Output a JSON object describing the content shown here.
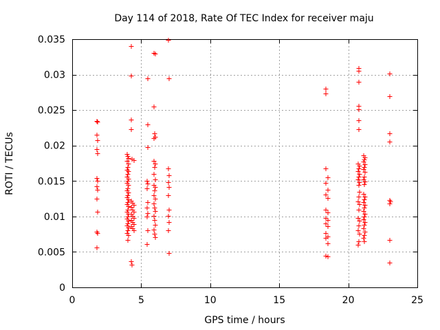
{
  "chart_data": {
    "type": "scatter",
    "title": "Day 114 of 2018, Rate Of TEC Index for receiver maju",
    "xlabel": "GPS time / hours",
    "ylabel": "ROTI / TECUs",
    "xlim": [
      0,
      25
    ],
    "ylim": [
      0,
      0.035
    ],
    "grid": true,
    "marker": "+",
    "marker_color": "#ff0000",
    "xticks": [
      0,
      5,
      10,
      15,
      20,
      25
    ],
    "xtick_labels": [
      "0",
      "5",
      "10",
      "15",
      "20",
      "25"
    ],
    "yticks": [
      0,
      0.005,
      0.01,
      0.015,
      0.02,
      0.025,
      0.03,
      0.035
    ],
    "ytick_labels": [
      "0",
      "0.005",
      "0.01",
      "0.015",
      "0.02",
      "0.025",
      "0.03",
      "0.035"
    ],
    "series": [
      {
        "name": "ROTI",
        "points": [
          [
            1.75,
            0.0235
          ],
          [
            1.8,
            0.0234
          ],
          [
            1.75,
            0.0215
          ],
          [
            1.8,
            0.0207
          ],
          [
            1.75,
            0.0195
          ],
          [
            1.8,
            0.0189
          ],
          [
            1.75,
            0.0154
          ],
          [
            1.8,
            0.015
          ],
          [
            1.75,
            0.0143
          ],
          [
            1.8,
            0.0138
          ],
          [
            1.75,
            0.0125
          ],
          [
            1.8,
            0.0107
          ],
          [
            1.75,
            0.0079
          ],
          [
            1.8,
            0.0077
          ],
          [
            1.75,
            0.0056
          ],
          [
            3.95,
            0.0188
          ],
          [
            4.0,
            0.0185
          ],
          [
            4.05,
            0.0182
          ],
          [
            3.95,
            0.0178
          ],
          [
            4.05,
            0.0175
          ],
          [
            4.0,
            0.017
          ],
          [
            3.95,
            0.0166
          ],
          [
            4.05,
            0.0164
          ],
          [
            4.0,
            0.016
          ],
          [
            3.95,
            0.0156
          ],
          [
            4.05,
            0.0153
          ],
          [
            4.0,
            0.015
          ],
          [
            3.95,
            0.0147
          ],
          [
            4.05,
            0.0144
          ],
          [
            4.0,
            0.014
          ],
          [
            3.95,
            0.0137
          ],
          [
            4.05,
            0.0134
          ],
          [
            4.0,
            0.013
          ],
          [
            3.95,
            0.0127
          ],
          [
            4.05,
            0.0124
          ],
          [
            4.0,
            0.012
          ],
          [
            3.95,
            0.0117
          ],
          [
            4.05,
            0.0114
          ],
          [
            4.0,
            0.011
          ],
          [
            3.95,
            0.0107
          ],
          [
            4.05,
            0.0104
          ],
          [
            4.0,
            0.01
          ],
          [
            3.95,
            0.0097
          ],
          [
            4.05,
            0.0094
          ],
          [
            4.0,
            0.009
          ],
          [
            3.95,
            0.0087
          ],
          [
            4.05,
            0.0084
          ],
          [
            4.0,
            0.008
          ],
          [
            3.95,
            0.0077
          ],
          [
            4.05,
            0.0074
          ],
          [
            3.98,
            0.0067
          ],
          [
            4.25,
            0.034
          ],
          [
            4.25,
            0.0299
          ],
          [
            4.25,
            0.0237
          ],
          [
            4.25,
            0.0223
          ],
          [
            4.3,
            0.0181
          ],
          [
            4.45,
            0.0179
          ],
          [
            4.25,
            0.0122
          ],
          [
            4.35,
            0.0119
          ],
          [
            4.45,
            0.0116
          ],
          [
            4.25,
            0.0113
          ],
          [
            4.35,
            0.011
          ],
          [
            4.45,
            0.0107
          ],
          [
            4.25,
            0.0104
          ],
          [
            4.35,
            0.0101
          ],
          [
            4.45,
            0.0098
          ],
          [
            4.25,
            0.0095
          ],
          [
            4.35,
            0.0092
          ],
          [
            4.45,
            0.0089
          ],
          [
            4.25,
            0.0086
          ],
          [
            4.35,
            0.0083
          ],
          [
            4.45,
            0.008
          ],
          [
            4.25,
            0.0037
          ],
          [
            4.3,
            0.0032
          ],
          [
            5.45,
            0.0295
          ],
          [
            5.45,
            0.023
          ],
          [
            5.45,
            0.0198
          ],
          [
            5.4,
            0.015
          ],
          [
            5.45,
            0.0146
          ],
          [
            5.4,
            0.014
          ],
          [
            5.45,
            0.012
          ],
          [
            5.4,
            0.0112
          ],
          [
            5.45,
            0.0105
          ],
          [
            5.4,
            0.01
          ],
          [
            5.45,
            0.008
          ],
          [
            5.4,
            0.0061
          ],
          [
            5.9,
            0.0331
          ],
          [
            6.0,
            0.033
          ],
          [
            5.9,
            0.0255
          ],
          [
            5.95,
            0.0217
          ],
          [
            6.0,
            0.0212
          ],
          [
            5.9,
            0.021
          ],
          [
            5.9,
            0.0178
          ],
          [
            6.0,
            0.0175
          ],
          [
            5.95,
            0.017
          ],
          [
            5.9,
            0.016
          ],
          [
            6.0,
            0.0152
          ],
          [
            5.9,
            0.0144
          ],
          [
            6.0,
            0.0142
          ],
          [
            5.95,
            0.0137
          ],
          [
            5.9,
            0.013
          ],
          [
            6.0,
            0.0125
          ],
          [
            5.9,
            0.0118
          ],
          [
            5.95,
            0.0112
          ],
          [
            6.0,
            0.0108
          ],
          [
            5.9,
            0.0101
          ],
          [
            5.95,
            0.0095
          ],
          [
            6.0,
            0.0088
          ],
          [
            5.9,
            0.0081
          ],
          [
            5.95,
            0.0076
          ],
          [
            6.0,
            0.0071
          ],
          [
            6.9,
            0.0349
          ],
          [
            6.95,
            0.0295
          ],
          [
            6.9,
            0.0168
          ],
          [
            6.95,
            0.0158
          ],
          [
            6.9,
            0.0148
          ],
          [
            6.95,
            0.0142
          ],
          [
            6.9,
            0.013
          ],
          [
            6.95,
            0.011
          ],
          [
            6.9,
            0.0101
          ],
          [
            6.95,
            0.0092
          ],
          [
            6.9,
            0.008
          ],
          [
            6.95,
            0.0048
          ],
          [
            18.35,
            0.028
          ],
          [
            18.35,
            0.0273
          ],
          [
            18.35,
            0.0168
          ],
          [
            18.5,
            0.0155
          ],
          [
            18.35,
            0.0147
          ],
          [
            18.5,
            0.0138
          ],
          [
            18.35,
            0.0131
          ],
          [
            18.5,
            0.0126
          ],
          [
            18.35,
            0.011
          ],
          [
            18.5,
            0.0106
          ],
          [
            18.35,
            0.0098
          ],
          [
            18.5,
            0.0095
          ],
          [
            18.35,
            0.009
          ],
          [
            18.5,
            0.0086
          ],
          [
            18.35,
            0.0077
          ],
          [
            18.5,
            0.0072
          ],
          [
            18.35,
            0.007
          ],
          [
            18.5,
            0.0062
          ],
          [
            18.35,
            0.0045
          ],
          [
            18.5,
            0.0044
          ],
          [
            20.7,
            0.0309
          ],
          [
            20.7,
            0.0305
          ],
          [
            20.7,
            0.029
          ],
          [
            20.7,
            0.0256
          ],
          [
            20.7,
            0.0251
          ],
          [
            20.7,
            0.0236
          ],
          [
            20.7,
            0.0223
          ],
          [
            20.65,
            0.0175
          ],
          [
            20.75,
            0.0172
          ],
          [
            20.7,
            0.0168
          ],
          [
            20.65,
            0.0164
          ],
          [
            20.75,
            0.016
          ],
          [
            20.7,
            0.0156
          ],
          [
            20.65,
            0.0152
          ],
          [
            20.75,
            0.0148
          ],
          [
            20.7,
            0.0144
          ],
          [
            20.75,
            0.0135
          ],
          [
            20.7,
            0.0128
          ],
          [
            20.65,
            0.0121
          ],
          [
            20.75,
            0.0117
          ],
          [
            20.7,
            0.011
          ],
          [
            20.65,
            0.0098
          ],
          [
            20.75,
            0.0094
          ],
          [
            20.7,
            0.0087
          ],
          [
            20.65,
            0.008
          ],
          [
            20.75,
            0.0076
          ],
          [
            20.7,
            0.0065
          ],
          [
            20.65,
            0.006
          ],
          [
            21.05,
            0.0186
          ],
          [
            21.15,
            0.0183
          ],
          [
            21.1,
            0.018
          ],
          [
            21.05,
            0.0177
          ],
          [
            21.15,
            0.0174
          ],
          [
            21.1,
            0.017
          ],
          [
            21.05,
            0.0167
          ],
          [
            21.15,
            0.0163
          ],
          [
            21.1,
            0.0156
          ],
          [
            21.05,
            0.0152
          ],
          [
            21.15,
            0.0149
          ],
          [
            21.1,
            0.0145
          ],
          [
            21.05,
            0.0132
          ],
          [
            21.15,
            0.0128
          ],
          [
            21.1,
            0.0124
          ],
          [
            21.05,
            0.012
          ],
          [
            21.15,
            0.0116
          ],
          [
            21.1,
            0.0112
          ],
          [
            21.05,
            0.0108
          ],
          [
            21.15,
            0.0104
          ],
          [
            21.1,
            0.01
          ],
          [
            21.05,
            0.0096
          ],
          [
            21.15,
            0.0092
          ],
          [
            21.1,
            0.0088
          ],
          [
            21.05,
            0.0083
          ],
          [
            21.15,
            0.0079
          ],
          [
            21.1,
            0.0074
          ],
          [
            21.05,
            0.007
          ],
          [
            21.1,
            0.0065
          ],
          [
            22.95,
            0.0302
          ],
          [
            22.95,
            0.027
          ],
          [
            22.95,
            0.0217
          ],
          [
            22.95,
            0.0206
          ],
          [
            22.95,
            0.0123
          ],
          [
            23.0,
            0.0121
          ],
          [
            22.95,
            0.0118
          ],
          [
            22.95,
            0.0067
          ],
          [
            22.95,
            0.0035
          ]
        ]
      }
    ]
  }
}
